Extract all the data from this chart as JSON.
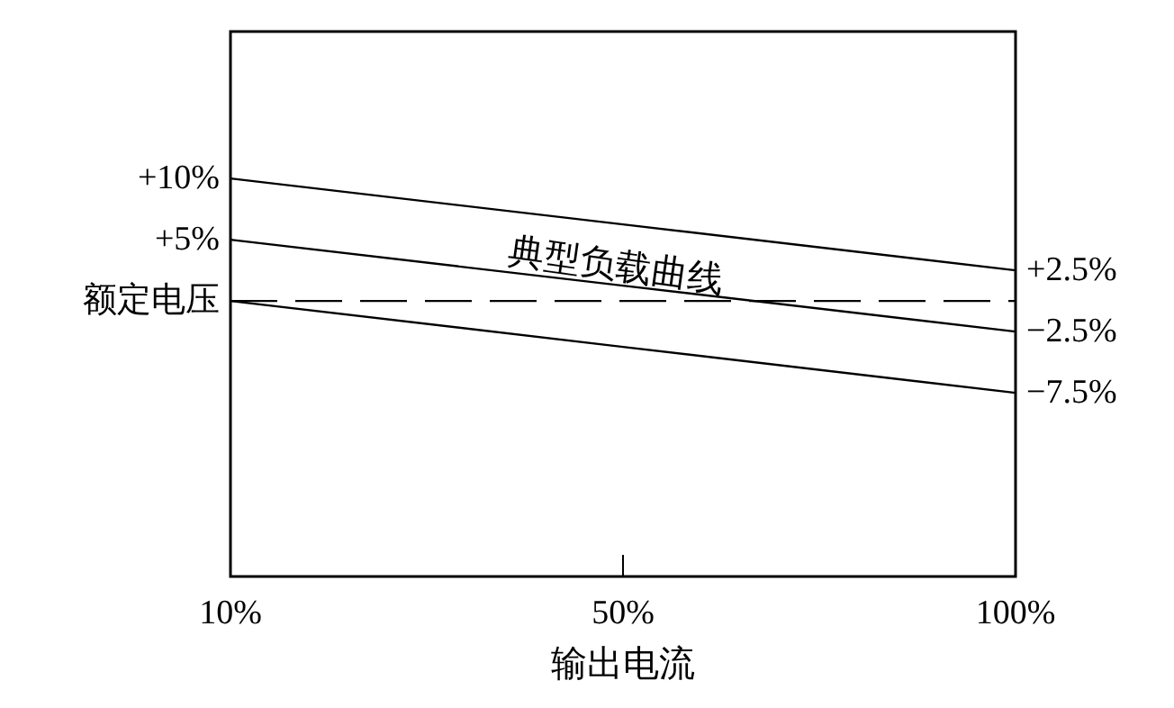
{
  "chart_data": {
    "type": "line",
    "xlabel": "输出电流",
    "categories": [
      "10%",
      "50%",
      "100%"
    ],
    "series": [
      {
        "color": "#000000",
        "values": [
          10,
          6.25,
          2.5
        ]
      },
      {
        "color": "#000000",
        "values": [
          5,
          1.25,
          -2.5
        ]
      },
      {
        "color": "#000000",
        "values": [
          0,
          -3.75,
          -7.5
        ]
      }
    ],
    "ylim": [
      -22.5,
      22
    ],
    "yticks": [
      {
        "value": 10,
        "label": "+10%"
      },
      {
        "value": 5,
        "label": "+5%"
      },
      {
        "value": 0,
        "label": "额定电压"
      }
    ],
    "y2lim": [
      -22.5,
      22
    ],
    "y2ticks": [
      {
        "value": 2.5,
        "label": "+2.5%"
      },
      {
        "value": -2.5,
        "label": "−2.5%"
      },
      {
        "value": -7.5,
        "label": "−7.5%"
      }
    ],
    "ref_lines": [
      {
        "axis": "y",
        "value": 0,
        "color": "#000000",
        "line_style": "dashed"
      }
    ],
    "annotations": [
      "典型负载曲线"
    ]
  }
}
